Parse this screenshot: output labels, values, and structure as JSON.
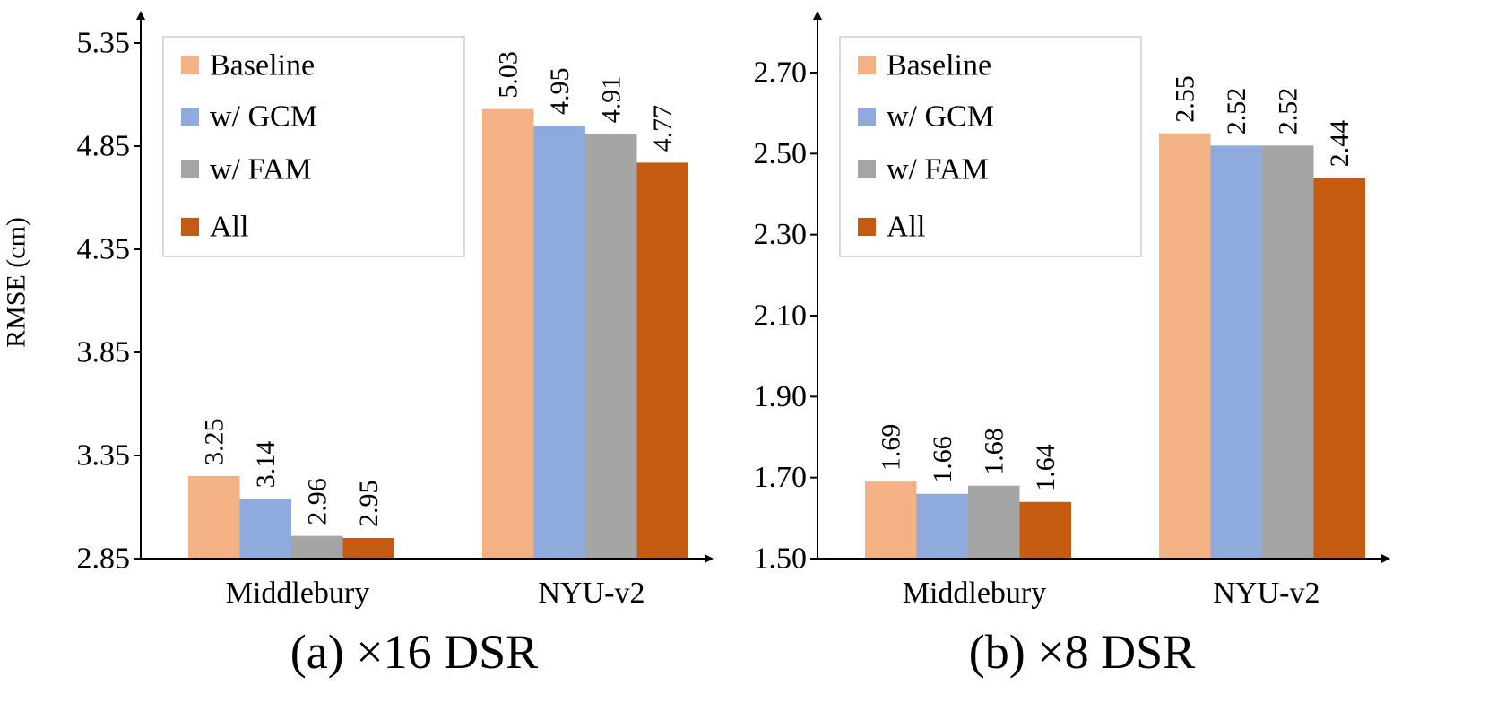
{
  "chart_data": [
    {
      "type": "bar",
      "caption": "(a) ×16 DSR",
      "ylabel": "RMSE (cm)",
      "xlabel": "",
      "categories": [
        "Middlebury",
        "NYU-v2"
      ],
      "ylim": [
        2.85,
        5.35
      ],
      "yticks": [
        "2.85",
        "3.35",
        "3.85",
        "4.35",
        "4.85",
        "5.35"
      ],
      "series": [
        {
          "name": "Baseline",
          "color": "#F4B183",
          "values": [
            3.25,
            5.03
          ],
          "labels": [
            "3.25",
            "5.03"
          ]
        },
        {
          "name": "w/ GCM",
          "color": "#8FAADC",
          "values": [
            3.14,
            4.95
          ],
          "labels": [
            "3.14",
            "4.95"
          ]
        },
        {
          "name": "w/ FAM",
          "color": "#A5A5A5",
          "values": [
            2.96,
            4.91
          ],
          "labels": [
            "2.96",
            "4.91"
          ]
        },
        {
          "name": "All",
          "color": "#C55A11",
          "values": [
            2.95,
            4.77
          ],
          "labels": [
            "2.95",
            "4.77"
          ]
        }
      ],
      "legend": {
        "position": "top-left"
      }
    },
    {
      "type": "bar",
      "caption": "(b) ×8 DSR",
      "ylabel": "",
      "xlabel": "",
      "categories": [
        "Middlebury",
        "NYU-v2"
      ],
      "ylim": [
        1.5,
        2.8
      ],
      "yticks": [
        "1.50",
        "1.70",
        "1.90",
        "2.10",
        "2.30",
        "2.50",
        "2.70"
      ],
      "series": [
        {
          "name": "Baseline",
          "color": "#F4B183",
          "values": [
            1.69,
            2.55
          ],
          "labels": [
            "1.69",
            "2.55"
          ]
        },
        {
          "name": "w/ GCM",
          "color": "#8FAADC",
          "values": [
            1.66,
            2.52
          ],
          "labels": [
            "1.66",
            "2.52"
          ]
        },
        {
          "name": "w/ FAM",
          "color": "#A5A5A5",
          "values": [
            1.68,
            2.52
          ],
          "labels": [
            "1.68",
            "2.52"
          ]
        },
        {
          "name": "All",
          "color": "#C55A11",
          "values": [
            1.64,
            2.44
          ],
          "labels": [
            "1.64",
            "2.44"
          ]
        }
      ],
      "legend": {
        "position": "top-left"
      }
    }
  ]
}
